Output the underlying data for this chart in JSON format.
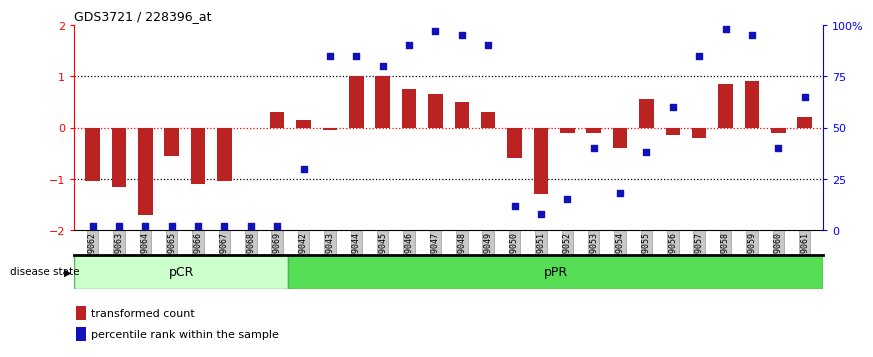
{
  "title": "GDS3721 / 228396_at",
  "samples": [
    "GSM559062",
    "GSM559063",
    "GSM559064",
    "GSM559065",
    "GSM559066",
    "GSM559067",
    "GSM559068",
    "GSM559069",
    "GSM559042",
    "GSM559043",
    "GSM559044",
    "GSM559045",
    "GSM559046",
    "GSM559047",
    "GSM559048",
    "GSM559049",
    "GSM559050",
    "GSM559051",
    "GSM559052",
    "GSM559053",
    "GSM559054",
    "GSM559055",
    "GSM559056",
    "GSM559057",
    "GSM559058",
    "GSM559059",
    "GSM559060",
    "GSM559061"
  ],
  "bar_values": [
    -1.05,
    -1.15,
    -1.7,
    -0.55,
    -1.1,
    -1.05,
    0.0,
    0.3,
    0.15,
    -0.05,
    1.0,
    1.0,
    0.75,
    0.65,
    0.5,
    0.3,
    -0.6,
    -1.3,
    -0.1,
    -0.1,
    -0.4,
    0.55,
    -0.15,
    -0.2,
    0.85,
    0.9,
    -0.1,
    0.2
  ],
  "percentile_values": [
    2,
    2,
    2,
    2,
    2,
    2,
    2,
    2,
    30,
    85,
    85,
    80,
    90,
    97,
    95,
    90,
    12,
    8,
    15,
    40,
    18,
    38,
    60,
    85,
    98,
    95,
    40,
    65
  ],
  "pCR_count": 8,
  "bar_color": "#bb2222",
  "dot_color": "#1111bb",
  "ylim_left": [
    -2,
    2
  ],
  "ylim_right": [
    0,
    100
  ],
  "yticks_left": [
    -2,
    -1,
    0,
    1,
    2
  ],
  "yticks_right": [
    0,
    25,
    50,
    75,
    100
  ],
  "yticklabels_right": [
    "0",
    "25",
    "50",
    "75",
    "100%"
  ],
  "pCR_label": "pCR",
  "pPR_label": "pPR",
  "pCR_color": "#ccffcc",
  "pPR_color": "#55dd55",
  "legend_bar_label": "transformed count",
  "legend_dot_label": "percentile rank within the sample",
  "disease_state_label": "disease state",
  "tick_bg_color": "#c8c8c8"
}
